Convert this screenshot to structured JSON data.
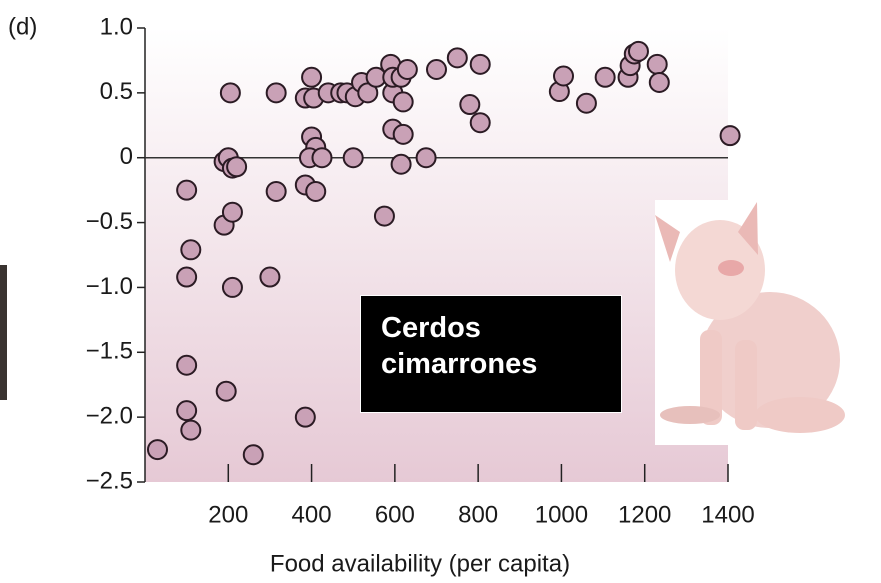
{
  "chart_data": {
    "type": "scatter",
    "panel_label": "(d)",
    "x_label": "Food availability (per capita)",
    "annotation": "Cerdos cimarrones",
    "color": "#c9a1b6",
    "x": [
      30,
      100,
      110,
      100,
      100,
      100,
      110,
      205,
      190,
      200,
      210,
      220,
      190,
      210,
      210,
      195,
      260,
      315,
      315,
      300,
      385,
      385,
      410,
      385,
      400,
      405,
      400,
      410,
      395,
      425,
      440,
      470,
      485,
      505,
      500,
      520,
      535,
      555,
      575,
      590,
      595,
      595,
      595,
      615,
      620,
      620,
      630,
      615,
      675,
      700,
      750,
      805,
      780,
      805,
      995,
      1005,
      1060,
      1105,
      1160,
      1165,
      1175,
      1185,
      1230,
      1235,
      1405
    ],
    "values": [
      -2.25,
      -0.25,
      -0.71,
      -0.92,
      -1.6,
      -1.95,
      -2.1,
      0.5,
      -0.03,
      0,
      -0.08,
      -0.07,
      -0.52,
      -0.42,
      -1.0,
      -1.8,
      -2.29,
      0.5,
      -0.26,
      -0.92,
      -2.0,
      -0.21,
      -0.26,
      0.46,
      0.62,
      0.46,
      0.16,
      0.08,
      0,
      0,
      0.5,
      0.5,
      0.5,
      0.47,
      0,
      0.58,
      0.5,
      0.62,
      -0.45,
      0.72,
      0.5,
      0.22,
      0.62,
      0.62,
      0.18,
      0.43,
      0.68,
      -0.05,
      0,
      0.68,
      0.77,
      0.72,
      0.41,
      0.27,
      0.51,
      0.63,
      0.42,
      0.62,
      0.62,
      0.71,
      0.8,
      0.82,
      0.72,
      0.58,
      0.17
    ],
    "xlim": [
      0,
      1400
    ],
    "ylim": [
      -2.5,
      1.0
    ],
    "xticks": [
      200,
      400,
      600,
      800,
      1000,
      1200,
      1400
    ],
    "yticks": [
      {
        "value": 1,
        "label": "1.0"
      },
      0.5,
      0,
      {
        "value": -0.5,
        "label": "−0.5"
      },
      {
        "value": -1,
        "label": "−1.0"
      },
      {
        "value": -1.5,
        "label": "−1.5"
      },
      {
        "value": -2,
        "label": "−2.0"
      },
      {
        "value": -2.5,
        "label": "−2.5"
      }
    ],
    "hline": 0
  }
}
